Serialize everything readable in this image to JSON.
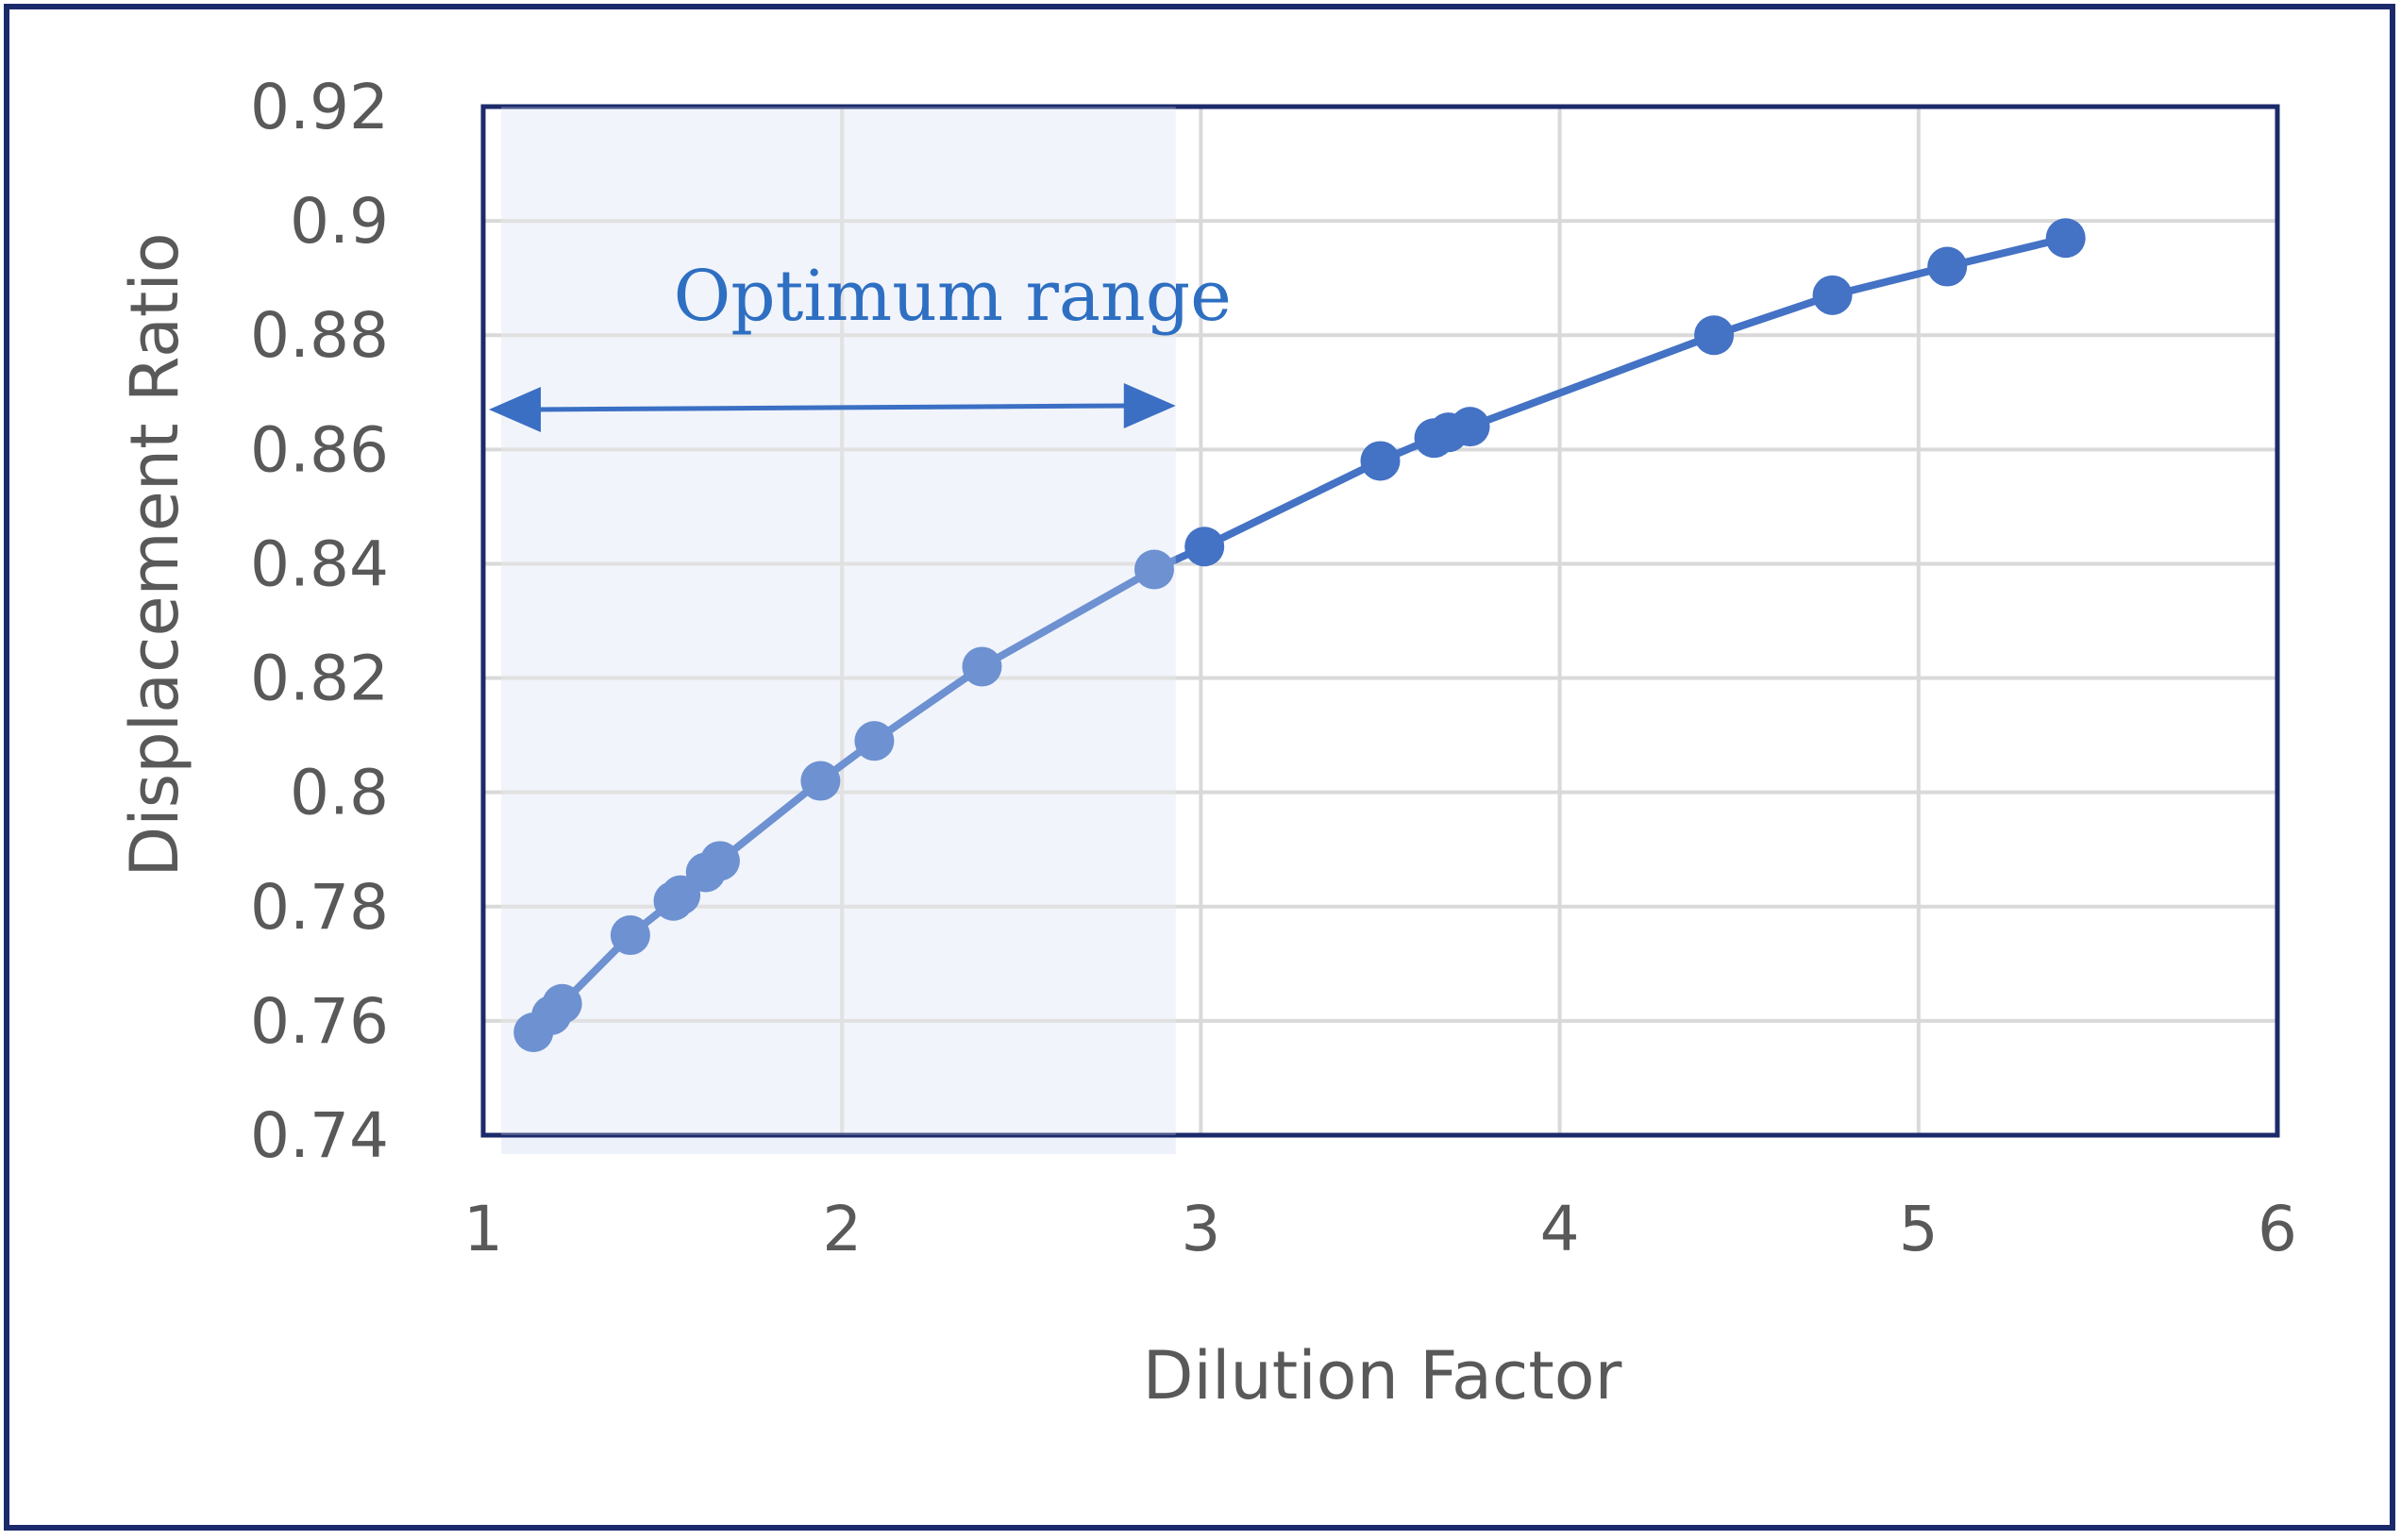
{
  "chart_data": {
    "type": "line",
    "xlabel": "Dilution Factor",
    "ylabel": "Displacement Ratio",
    "xlim": [
      1,
      6
    ],
    "ylim": [
      0.74,
      0.92
    ],
    "x_ticks": [
      1,
      2,
      3,
      4,
      5,
      6
    ],
    "y_ticks": [
      0.74,
      0.76,
      0.78,
      0.8,
      0.82,
      0.84,
      0.86,
      0.88,
      0.9,
      0.92
    ],
    "x_tick_labels": [
      "1",
      "2",
      "3",
      "4",
      "5",
      "6"
    ],
    "y_tick_labels": [
      "0.74",
      "0.76",
      "0.78",
      "0.8",
      "0.82",
      "0.84",
      "0.86",
      "0.88",
      "0.9",
      "0.92"
    ],
    "grid": true,
    "series": [
      {
        "color": "#4472c4",
        "x": [
          1.14,
          1.19,
          1.22,
          1.41,
          1.53,
          1.55,
          1.62,
          1.66,
          1.94,
          2.09,
          2.39,
          2.87,
          3.01,
          3.5,
          3.65,
          3.69,
          3.75,
          4.43,
          4.76,
          5.08,
          5.41
        ],
        "y": [
          0.758,
          0.761,
          0.763,
          0.775,
          0.781,
          0.782,
          0.786,
          0.788,
          0.802,
          0.809,
          0.822,
          0.839,
          0.843,
          0.858,
          0.862,
          0.863,
          0.864,
          0.88,
          0.887,
          0.892,
          0.897
        ]
      }
    ],
    "highlight_region": {
      "x_start": 1.05,
      "x_end": 2.93,
      "color": "#dfe6f6"
    },
    "annotation": {
      "text": "Optimum range",
      "arrow_from_x": 1.0,
      "arrow_to_x": 2.93,
      "arrow_y": 0.867,
      "color": "#3a6fc4"
    }
  }
}
